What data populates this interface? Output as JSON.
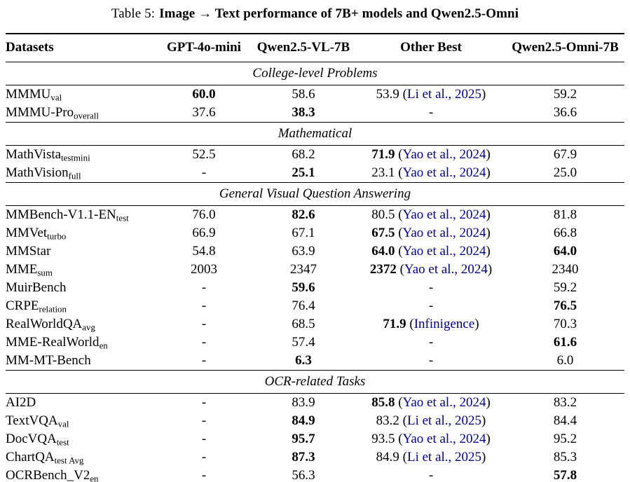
{
  "caption": {
    "label": "Table 5:",
    "text": "Image → Text performance of 7B+ models and Qwen2.5-Omni"
  },
  "columns": [
    "Datasets",
    "GPT-4o-mini",
    "Qwen2.5-VL-7B",
    "Other Best",
    "Qwen2.5-Omni-7B"
  ],
  "formatting": {
    "paren_open": "(",
    "paren_close": ")",
    "citation_color": "#00008B",
    "text_color": "#000000",
    "background_color": "#ffffff"
  },
  "sections": [
    {
      "name": "College-level Problems",
      "rows": [
        {
          "name": "MMMU",
          "sub": "val",
          "cells": [
            {
              "v": "60.0",
              "b": true
            },
            {
              "v": "58.6"
            },
            {
              "v": "53.9",
              "cite": "Li et al., 2025"
            },
            {
              "v": "59.2"
            }
          ]
        },
        {
          "name": "MMMU-Pro",
          "sub": "overall",
          "cells": [
            {
              "v": "37.6"
            },
            {
              "v": "38.3",
              "b": true
            },
            {
              "v": "-"
            },
            {
              "v": "36.6"
            }
          ]
        }
      ]
    },
    {
      "name": "Mathematical",
      "rows": [
        {
          "name": "MathVista",
          "sub": "testmini",
          "cells": [
            {
              "v": "52.5"
            },
            {
              "v": "68.2"
            },
            {
              "v": "71.9",
              "b": true,
              "cite": "Yao et al., 2024"
            },
            {
              "v": "67.9"
            }
          ]
        },
        {
          "name": "MathVision",
          "sub": "full",
          "cells": [
            {
              "v": "-"
            },
            {
              "v": "25.1",
              "b": true
            },
            {
              "v": "23.1",
              "cite": "Yao et al., 2024"
            },
            {
              "v": "25.0"
            }
          ]
        }
      ]
    },
    {
      "name": "General Visual Question Answering",
      "rows": [
        {
          "name": "MMBench-V1.1-EN",
          "sub": "test",
          "cells": [
            {
              "v": "76.0"
            },
            {
              "v": "82.6",
              "b": true
            },
            {
              "v": "80.5",
              "cite": "Yao et al., 2024"
            },
            {
              "v": "81.8"
            }
          ]
        },
        {
          "name": "MMVet",
          "sub": "turbo",
          "cells": [
            {
              "v": "66.9"
            },
            {
              "v": "67.1"
            },
            {
              "v": "67.5",
              "b": true,
              "cite": "Yao et al., 2024"
            },
            {
              "v": "66.8"
            }
          ]
        },
        {
          "name": "MMStar",
          "sub": "",
          "cells": [
            {
              "v": "54.8"
            },
            {
              "v": "63.9"
            },
            {
              "v": "64.0",
              "b": true,
              "cite": "Yao et al., 2024"
            },
            {
              "v": "64.0",
              "b": true
            }
          ]
        },
        {
          "name": "MME",
          "sub": "sum",
          "cells": [
            {
              "v": "2003"
            },
            {
              "v": "2347"
            },
            {
              "v": "2372",
              "b": true,
              "cite": "Yao et al., 2024"
            },
            {
              "v": "2340"
            }
          ]
        },
        {
          "name": "MuirBench",
          "sub": "",
          "cells": [
            {
              "v": "-"
            },
            {
              "v": "59.6",
              "b": true
            },
            {
              "v": "-"
            },
            {
              "v": "59.2"
            }
          ]
        },
        {
          "name": "CRPE",
          "sub": "relation",
          "cells": [
            {
              "v": "-"
            },
            {
              "v": "76.4"
            },
            {
              "v": "-"
            },
            {
              "v": "76.5",
              "b": true
            }
          ]
        },
        {
          "name": "RealWorldQA",
          "sub": "avg",
          "cells": [
            {
              "v": "-"
            },
            {
              "v": "68.5"
            },
            {
              "v": "71.9",
              "b": true,
              "cite": "Infinigence"
            },
            {
              "v": "70.3"
            }
          ]
        },
        {
          "name": "MME-RealWorld",
          "sub": "en",
          "cells": [
            {
              "v": "-"
            },
            {
              "v": "57.4"
            },
            {
              "v": "-"
            },
            {
              "v": "61.6",
              "b": true
            }
          ]
        },
        {
          "name": "MM-MT-Bench",
          "sub": "",
          "cells": [
            {
              "v": "-"
            },
            {
              "v": "6.3",
              "b": true
            },
            {
              "v": "-"
            },
            {
              "v": "6.0"
            }
          ]
        }
      ]
    },
    {
      "name": "OCR-related Tasks",
      "rows": [
        {
          "name": "AI2D",
          "sub": "",
          "cells": [
            {
              "v": "-"
            },
            {
              "v": "83.9"
            },
            {
              "v": "85.8",
              "b": true,
              "cite": "Yao et al., 2024"
            },
            {
              "v": "83.2"
            }
          ]
        },
        {
          "name": "TextVQA",
          "sub": "val",
          "cells": [
            {
              "v": "-"
            },
            {
              "v": "84.9",
              "b": true
            },
            {
              "v": "83.2",
              "cite": "Li et al., 2025"
            },
            {
              "v": "84.4"
            }
          ]
        },
        {
          "name": "DocVQA",
          "sub": "test",
          "cells": [
            {
              "v": "-"
            },
            {
              "v": "95.7",
              "b": true
            },
            {
              "v": "93.5",
              "cite": "Yao et al., 2024"
            },
            {
              "v": "95.2"
            }
          ]
        },
        {
          "name": "ChartQA",
          "sub": "test Avg",
          "cells": [
            {
              "v": "-"
            },
            {
              "v": "87.3",
              "b": true
            },
            {
              "v": "84.9",
              "cite": "Li et al., 2025"
            },
            {
              "v": "85.3"
            }
          ]
        },
        {
          "name": "OCRBench_V2",
          "sub": "en",
          "cells": [
            {
              "v": "-"
            },
            {
              "v": "56.3"
            },
            {
              "v": "-"
            },
            {
              "v": "57.8",
              "b": true
            }
          ]
        }
      ]
    }
  ]
}
